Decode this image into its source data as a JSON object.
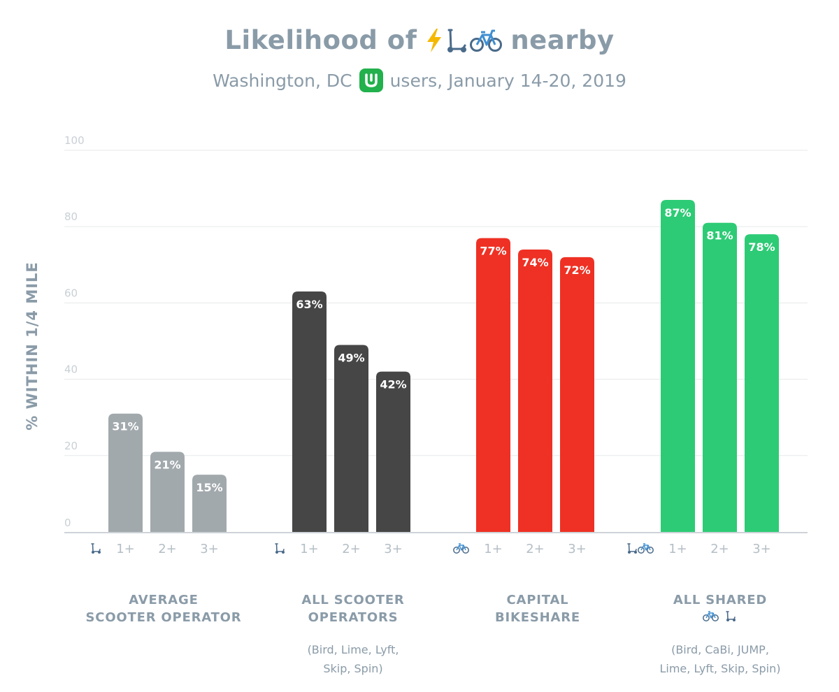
{
  "title": {
    "text_before": "Likelihood of",
    "text_after": "nearby",
    "icons": [
      "lightning-icon",
      "scooter-icon",
      "bicycle-icon"
    ]
  },
  "subtitle": {
    "text_before": "Washington, DC",
    "text_after": "users, January 14-20, 2019",
    "logo": "transit-app-logo-icon"
  },
  "colors": {
    "text": "#8a9ba8",
    "average_scooter": "#a2a9ad",
    "all_scooter": "#464646",
    "bikeshare": "#ee3124",
    "all_shared": "#2dcb75",
    "grid": "#e6e8ea",
    "axis": "#cdd3d8"
  },
  "chart_data": {
    "type": "bar",
    "title": "Likelihood of ⚡🛴🚲 nearby",
    "subtitle": "Washington, DC users, January 14-20, 2019",
    "ylabel": "% WITHIN 1/4 MILE",
    "xlabel": "",
    "ylim": [
      0,
      100
    ],
    "yticks": [
      "0",
      "20",
      "40",
      "60",
      "80",
      "100"
    ],
    "grid": true,
    "groups": [
      {
        "name": "AVERAGE SCOOTER OPERATOR",
        "label_lines": [
          "AVERAGE",
          "SCOOTER OPERATOR"
        ],
        "note_lines": [],
        "icons": [
          "scooter-icon"
        ],
        "label_icons": [],
        "color_key": "average_scooter",
        "categories": [
          "1+",
          "2+",
          "3+"
        ],
        "values": [
          31,
          21,
          15
        ],
        "value_labels": [
          "31%",
          "21%",
          "15%"
        ]
      },
      {
        "name": "ALL SCOOTER OPERATORS",
        "label_lines": [
          "ALL SCOOTER",
          "OPERATORS"
        ],
        "note_lines": [
          "(Bird, Lime, Lyft,",
          "Skip, Spin)"
        ],
        "icons": [
          "scooter-icon"
        ],
        "label_icons": [],
        "color_key": "all_scooter",
        "categories": [
          "1+",
          "2+",
          "3+"
        ],
        "values": [
          63,
          49,
          42
        ],
        "value_labels": [
          "63%",
          "49%",
          "42%"
        ]
      },
      {
        "name": "CAPITAL BIKESHARE",
        "label_lines": [
          "CAPITAL",
          "BIKESHARE"
        ],
        "note_lines": [],
        "icons": [
          "bicycle-icon"
        ],
        "label_icons": [],
        "color_key": "bikeshare",
        "categories": [
          "1+",
          "2+",
          "3+"
        ],
        "values": [
          77,
          74,
          72
        ],
        "value_labels": [
          "77%",
          "74%",
          "72%"
        ]
      },
      {
        "name": "ALL SHARED",
        "label_lines": [
          "ALL SHARED"
        ],
        "note_lines": [
          "(Bird, CaBi, JUMP,",
          "Lime, Lyft, Skip, Spin)"
        ],
        "icons": [
          "scooter-icon",
          "bicycle-icon"
        ],
        "label_icons": [
          "bicycle-icon",
          "scooter-icon"
        ],
        "color_key": "all_shared",
        "categories": [
          "1+",
          "2+",
          "3+"
        ],
        "values": [
          87,
          81,
          78
        ],
        "value_labels": [
          "87%",
          "81%",
          "78%"
        ]
      }
    ]
  }
}
